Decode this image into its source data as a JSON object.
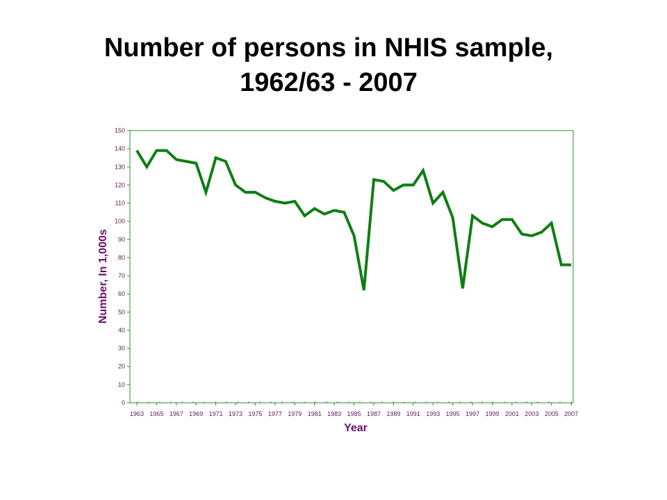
{
  "title": {
    "line1": "Number of persons in NHIS sample,",
    "line2": "1962/63 - 2007"
  },
  "colors": {
    "series": "#0e7e12",
    "axis_label": "#6b0f6b",
    "tick_label": "#5a1a5a",
    "frame": "#2f8a2f"
  },
  "chart_data": {
    "type": "line",
    "xlabel": "Year",
    "ylabel": "Number, In 1,000s",
    "ylim": [
      0,
      150
    ],
    "yticks": [
      0,
      10,
      20,
      30,
      40,
      50,
      60,
      70,
      80,
      90,
      100,
      110,
      120,
      130,
      140,
      150
    ],
    "xlim": [
      1962.3,
      2007.2
    ],
    "xticks": [
      "1963",
      "1965",
      "1967",
      "1969",
      "1971",
      "1973",
      "1975",
      "1977",
      "1979",
      "1981",
      "1983",
      "1985",
      "1987",
      "1989",
      "1991",
      "1993",
      "1995",
      "1997",
      "1999",
      "2001",
      "2003",
      "2005",
      "2007"
    ],
    "grid": false,
    "legend": "none",
    "series": [
      {
        "x": [
          1963,
          1964,
          1965,
          1966,
          1967,
          1968,
          1969,
          1970,
          1971,
          1972,
          1973,
          1974,
          1975,
          1976,
          1977,
          1978,
          1979,
          1980,
          1981,
          1982,
          1983,
          1984,
          1985,
          1986,
          1987,
          1988,
          1989,
          1990,
          1991,
          1992,
          1993,
          1994,
          1995,
          1996,
          1997,
          1998,
          1999,
          2000,
          2001,
          2002,
          2003,
          2004,
          2005,
          2006,
          2007
        ],
        "values": [
          139,
          130,
          139,
          139,
          134,
          133,
          132,
          116,
          135,
          133,
          120,
          116,
          116,
          113,
          111,
          110,
          111,
          103,
          107,
          104,
          106,
          105,
          92,
          62,
          123,
          122,
          117,
          120,
          120,
          128,
          110,
          116,
          102,
          63,
          103,
          99,
          97,
          101,
          101,
          93,
          92,
          94,
          99,
          76,
          76
        ]
      }
    ]
  }
}
